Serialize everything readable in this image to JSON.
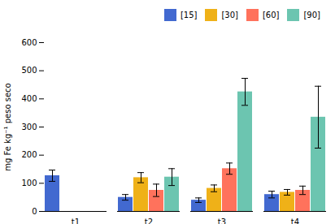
{
  "chart_data": {
    "type": "bar",
    "categories": [
      "t1",
      "t2",
      "t3",
      "t4"
    ],
    "series": [
      {
        "name": "[15]",
        "values": [
          127,
          50,
          40,
          60
        ],
        "errors": [
          20,
          10,
          8,
          12
        ]
      },
      {
        "name": "[30]",
        "values": [
          null,
          120,
          82,
          68
        ],
        "errors": [
          null,
          18,
          12,
          10
        ]
      },
      {
        "name": "[60]",
        "values": [
          null,
          75,
          152,
          75
        ],
        "errors": [
          null,
          22,
          20,
          15
        ]
      },
      {
        "name": "[90]",
        "values": [
          null,
          122,
          425,
          335
        ],
        "errors": [
          null,
          30,
          48,
          110
        ]
      }
    ],
    "ylabel": "mg Fe kg⁻¹ peso seco",
    "ylim": [
      0,
      600
    ],
    "yticks": [
      0,
      100,
      200,
      300,
      400,
      500,
      600
    ],
    "grid": false,
    "legend": "upper right"
  }
}
